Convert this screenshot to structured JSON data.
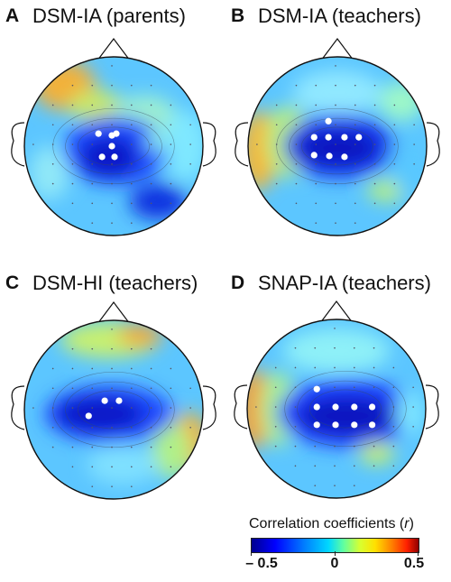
{
  "panels": [
    {
      "letter": "A",
      "title": "DSM-IA (parents)",
      "electrodes": [
        [
          -0.02,
          0.0
        ],
        [
          -0.13,
          0.12
        ],
        [
          0.01,
          0.12
        ],
        [
          -0.02,
          -0.12
        ],
        [
          -0.17,
          -0.14
        ],
        [
          0.03,
          -0.14
        ]
      ]
    },
    {
      "letter": "B",
      "title": "DSM-IA (teachers)",
      "electrodes": [
        [
          -0.26,
          0.1
        ],
        [
          -0.09,
          0.11
        ],
        [
          0.08,
          0.12
        ],
        [
          -0.26,
          -0.1
        ],
        [
          -0.1,
          -0.1
        ],
        [
          0.08,
          -0.1
        ],
        [
          0.24,
          -0.1
        ],
        [
          -0.1,
          -0.28
        ]
      ]
    },
    {
      "letter": "C",
      "title": "DSM-HI (teachers)",
      "electrodes": [
        [
          -0.28,
          0.07
        ],
        [
          -0.1,
          -0.1
        ],
        [
          0.06,
          -0.1
        ]
      ]
    },
    {
      "letter": "D",
      "title": "SNAP-IA (teachers)",
      "electrodes": [
        [
          -0.22,
          0.18
        ],
        [
          -0.01,
          0.18
        ],
        [
          0.2,
          0.18
        ],
        [
          0.4,
          0.18
        ],
        [
          -0.22,
          -0.02
        ],
        [
          -0.01,
          -0.02
        ],
        [
          0.2,
          -0.02
        ],
        [
          0.4,
          -0.02
        ],
        [
          -0.22,
          -0.22
        ]
      ]
    }
  ],
  "legend": {
    "title": "Correlation coefficients",
    "variable": "r",
    "ticks": [
      "– 0.5",
      "0",
      "0.5"
    ],
    "range": [
      -0.5,
      0.5
    ]
  }
}
